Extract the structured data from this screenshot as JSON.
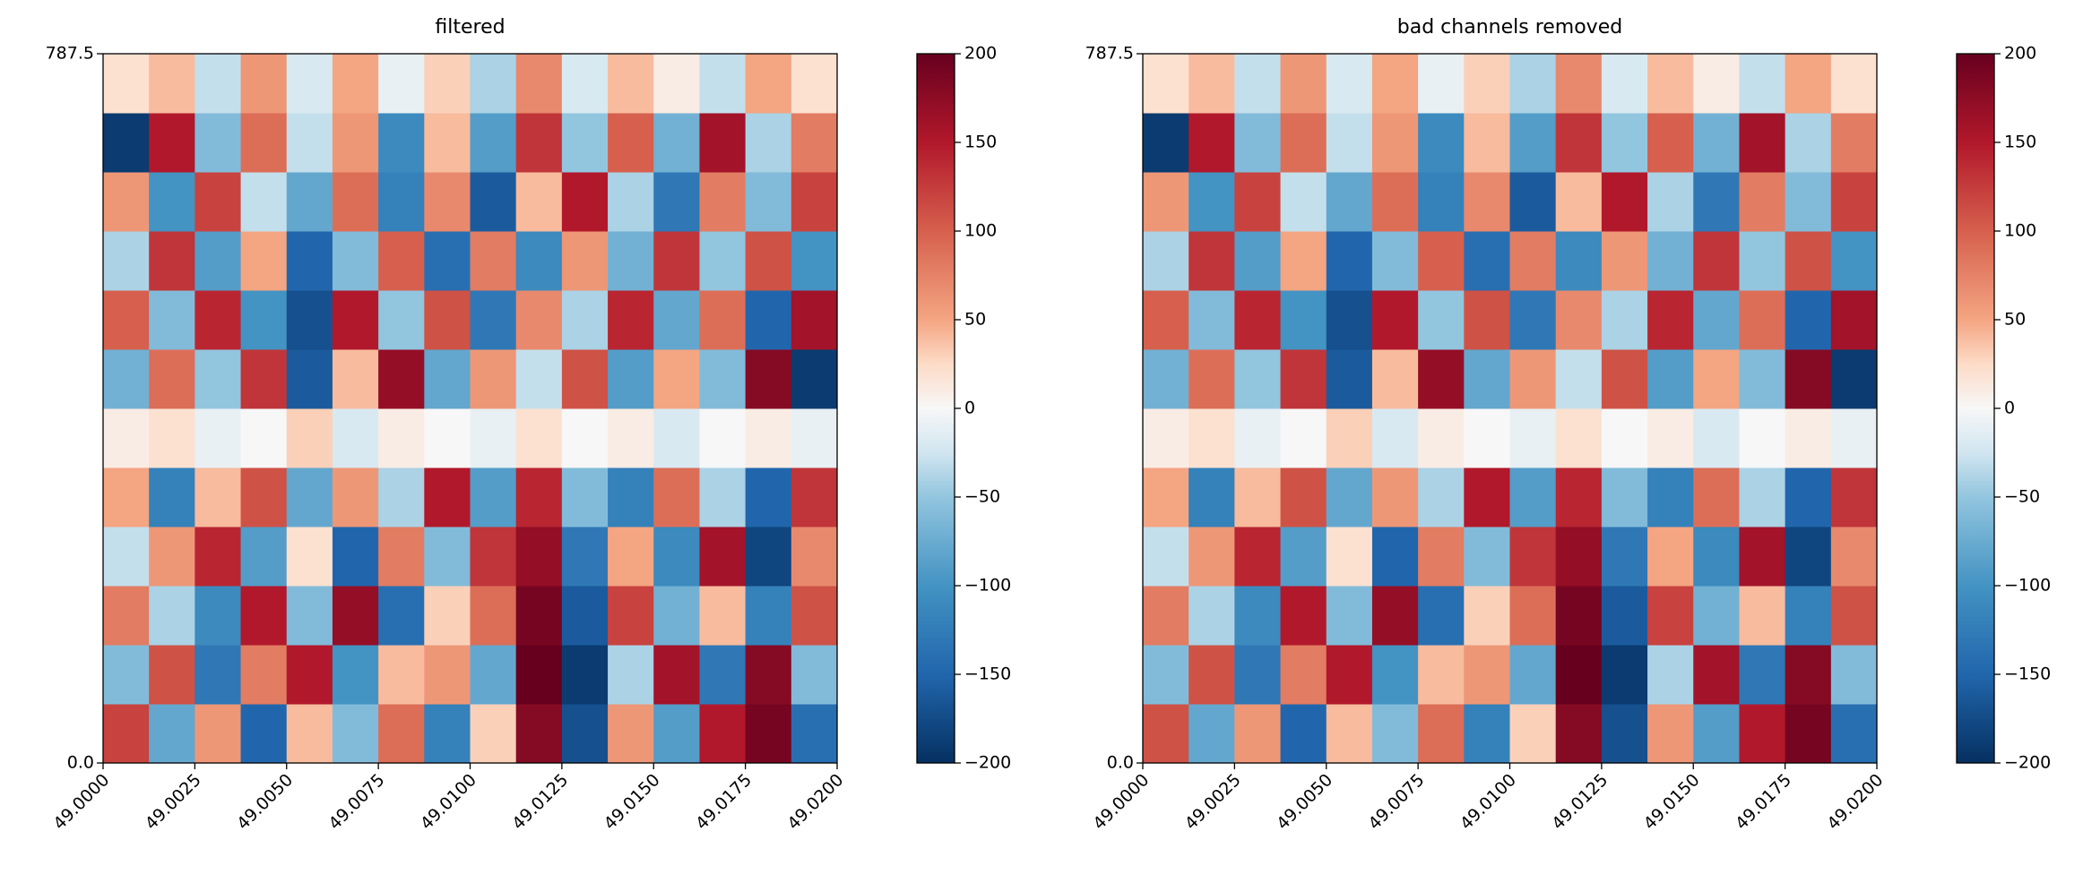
{
  "chart_data": [
    {
      "type": "heatmap",
      "title": "filtered",
      "colormap": "RdBu_r",
      "clim": [
        -200,
        200
      ],
      "xlim": [
        49.0,
        49.02
      ],
      "ylim": [
        0,
        787.5
      ],
      "xticks": [
        {
          "value": 49.0,
          "label": "49.0000"
        },
        {
          "value": 49.0025,
          "label": "49.0025"
        },
        {
          "value": 49.005,
          "label": "49.0050"
        },
        {
          "value": 49.0075,
          "label": "49.0075"
        },
        {
          "value": 49.01,
          "label": "49.0100"
        },
        {
          "value": 49.0125,
          "label": "49.0125"
        },
        {
          "value": 49.015,
          "label": "49.0150"
        },
        {
          "value": 49.0175,
          "label": "49.0175"
        },
        {
          "value": 49.02,
          "label": "49.0200"
        }
      ],
      "yticks": [
        {
          "value": 0,
          "label": "0.0"
        },
        787.5
      ],
      "cticks": [
        {
          "value": -200,
          "label": "−200"
        },
        {
          "value": -150,
          "label": "−150"
        },
        {
          "value": -100,
          "label": "−100"
        },
        {
          "value": -50,
          "label": "−50"
        },
        0,
        50,
        100,
        150,
        200
      ],
      "z": [
        [
          120,
          -80,
          60,
          -150,
          40,
          -60,
          90,
          -120,
          30,
          180,
          -170,
          60,
          -90,
          150,
          190,
          -140
        ],
        [
          -60,
          110,
          -130,
          80,
          150,
          -100,
          40,
          60,
          -80,
          200,
          -190,
          -40,
          160,
          -130,
          180,
          -60
        ],
        [
          80,
          -40,
          -110,
          150,
          -60,
          170,
          -140,
          30,
          90,
          190,
          -160,
          120,
          -70,
          40,
          -120,
          110
        ],
        [
          -30,
          60,
          140,
          -90,
          20,
          -150,
          80,
          -60,
          130,
          170,
          -130,
          50,
          -110,
          160,
          -180,
          70
        ],
        [
          50,
          -120,
          40,
          110,
          -80,
          60,
          -40,
          150,
          -90,
          140,
          -60,
          -120,
          90,
          -40,
          -150,
          130
        ],
        [
          10,
          20,
          -10,
          0,
          30,
          -20,
          10,
          0,
          -10,
          20,
          0,
          10,
          -20,
          0,
          10,
          -10
        ],
        [
          -70,
          90,
          -50,
          130,
          -160,
          40,
          170,
          -80,
          60,
          -30,
          110,
          -90,
          50,
          -60,
          180,
          -190
        ],
        [
          100,
          -60,
          140,
          -100,
          -170,
          150,
          -50,
          110,
          -130,
          70,
          -40,
          140,
          -80,
          90,
          -150,
          160
        ],
        [
          -40,
          130,
          -90,
          50,
          -150,
          -60,
          100,
          -140,
          80,
          -110,
          60,
          -70,
          130,
          -50,
          110,
          -100
        ],
        [
          60,
          -100,
          120,
          -30,
          -80,
          90,
          -120,
          70,
          -160,
          40,
          150,
          -40,
          -130,
          80,
          -60,
          120
        ],
        [
          -190,
          150,
          -60,
          90,
          -30,
          60,
          -110,
          40,
          -90,
          130,
          -50,
          100,
          -70,
          160,
          -40,
          80
        ],
        [
          20,
          40,
          -30,
          60,
          -20,
          50,
          -10,
          30,
          -40,
          70,
          -20,
          40,
          10,
          -30,
          50,
          20
        ]
      ]
    },
    {
      "type": "heatmap",
      "title": "bad channels removed",
      "colormap": "RdBu_r",
      "clim": [
        -200,
        200
      ],
      "xlim": [
        49.0,
        49.02
      ],
      "ylim": [
        0,
        787.5
      ],
      "xticks": [
        {
          "value": 49.0,
          "label": "49.0000"
        },
        {
          "value": 49.0025,
          "label": "49.0025"
        },
        {
          "value": 49.005,
          "label": "49.0050"
        },
        {
          "value": 49.0075,
          "label": "49.0075"
        },
        {
          "value": 49.01,
          "label": "49.0100"
        },
        {
          "value": 49.0125,
          "label": "49.0125"
        },
        {
          "value": 49.015,
          "label": "49.0150"
        },
        {
          "value": 49.0175,
          "label": "49.0175"
        },
        {
          "value": 49.02,
          "label": "49.0200"
        }
      ],
      "yticks": [
        {
          "value": 0,
          "label": "0.0"
        },
        787.5
      ],
      "cticks": [
        {
          "value": -200,
          "label": "−200"
        },
        {
          "value": -150,
          "label": "−150"
        },
        {
          "value": -100,
          "label": "−100"
        },
        {
          "value": -50,
          "label": "−50"
        },
        0,
        50,
        100,
        150,
        200
      ],
      "z": [
        [
          110,
          -80,
          60,
          -150,
          40,
          -60,
          90,
          -120,
          30,
          180,
          -170,
          60,
          -90,
          150,
          190,
          -140
        ],
        [
          -60,
          110,
          -130,
          80,
          150,
          -100,
          40,
          60,
          -80,
          200,
          -190,
          -40,
          160,
          -130,
          180,
          -60
        ],
        [
          80,
          -40,
          -110,
          150,
          -60,
          170,
          -140,
          30,
          90,
          190,
          -160,
          120,
          -70,
          40,
          -120,
          110
        ],
        [
          -30,
          60,
          140,
          -90,
          20,
          -150,
          80,
          -60,
          130,
          170,
          -130,
          50,
          -110,
          160,
          -180,
          70
        ],
        [
          50,
          -120,
          40,
          110,
          -80,
          60,
          -40,
          150,
          -90,
          140,
          -60,
          -120,
          90,
          -40,
          -150,
          130
        ],
        [
          10,
          20,
          -10,
          0,
          30,
          -20,
          10,
          0,
          -10,
          20,
          0,
          10,
          -20,
          0,
          10,
          -10
        ],
        [
          -70,
          90,
          -50,
          130,
          -160,
          40,
          170,
          -80,
          60,
          -30,
          110,
          -90,
          50,
          -60,
          180,
          -190
        ],
        [
          100,
          -60,
          140,
          -100,
          -170,
          150,
          -50,
          110,
          -130,
          70,
          -40,
          140,
          -80,
          90,
          -150,
          160
        ],
        [
          -40,
          130,
          -90,
          50,
          -150,
          -60,
          100,
          -140,
          80,
          -110,
          60,
          -70,
          130,
          -50,
          110,
          -100
        ],
        [
          60,
          -100,
          120,
          -30,
          -80,
          90,
          -120,
          70,
          -160,
          40,
          150,
          -40,
          -130,
          80,
          -60,
          120
        ],
        [
          -190,
          150,
          -60,
          90,
          -30,
          60,
          -110,
          40,
          -90,
          130,
          -50,
          100,
          -70,
          160,
          -40,
          80
        ],
        [
          20,
          40,
          -30,
          60,
          -20,
          50,
          -10,
          30,
          -40,
          70,
          -20,
          40,
          10,
          -30,
          50,
          20
        ]
      ]
    }
  ]
}
